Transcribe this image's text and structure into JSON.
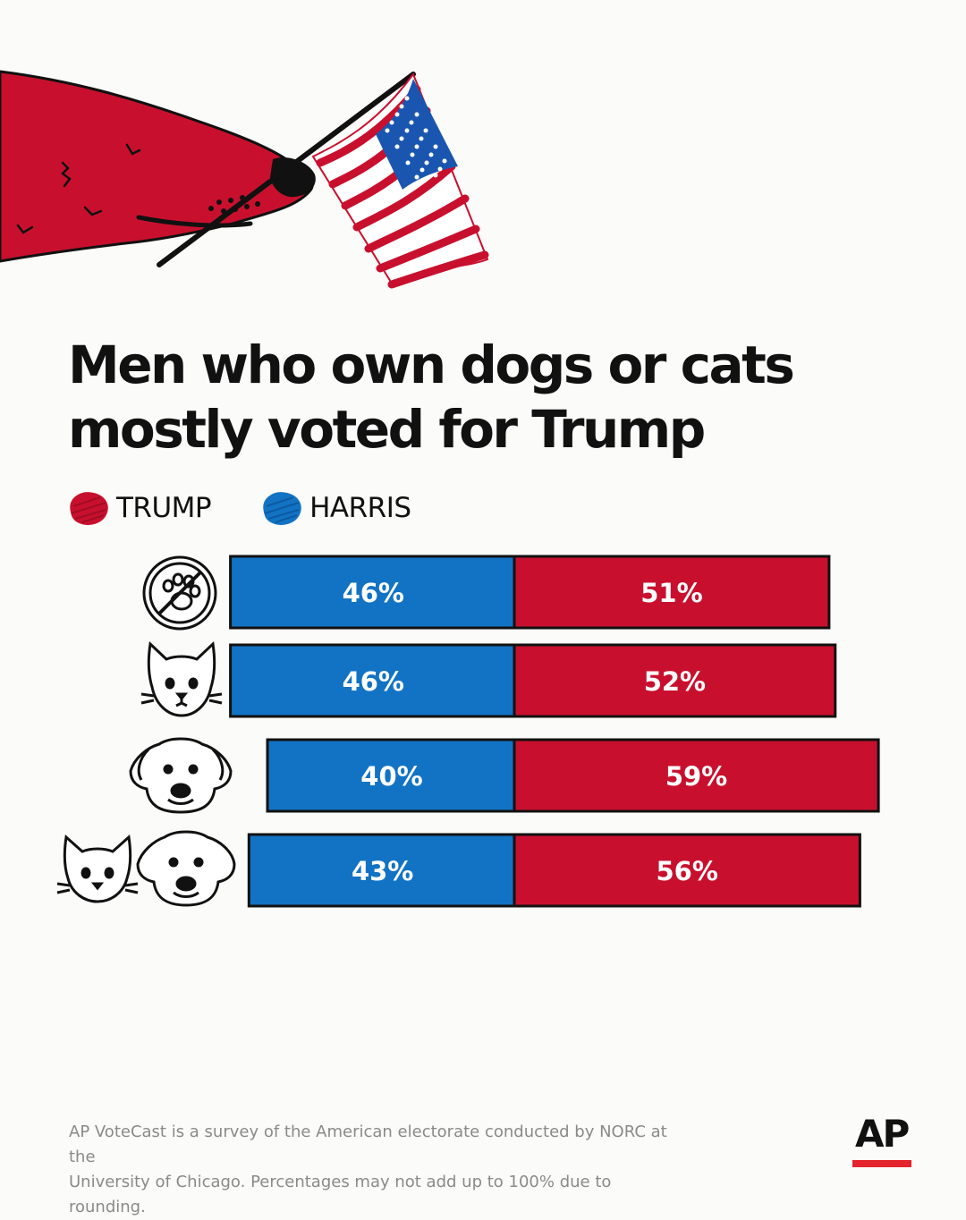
{
  "header": {
    "title_line1": "Men who own dogs or cats",
    "title_line2": "mostly voted for Trump"
  },
  "legend": {
    "items": [
      {
        "label": "TRUMP",
        "color": "#c8102e"
      },
      {
        "label": "HARRIS",
        "color": "#1273c4"
      }
    ]
  },
  "chart_data": {
    "type": "bar",
    "orientation": "horizontal-stacked",
    "title": "Men who own dogs or cats mostly voted for Trump",
    "categories": [
      "no-pet-icon",
      "cat-icon",
      "dog-icon",
      "cat-and-dog-icons"
    ],
    "series": [
      {
        "name": "HARRIS",
        "color": "#1273c4",
        "values": [
          46,
          46,
          40,
          43
        ],
        "labels": [
          "46%",
          "46%",
          "40%",
          "43%"
        ]
      },
      {
        "name": "TRUMP",
        "color": "#c8102e",
        "values": [
          51,
          52,
          59,
          56
        ],
        "labels": [
          "51%",
          "52%",
          "59%",
          "56%"
        ]
      }
    ],
    "legend_position": "top-left",
    "grid": false
  },
  "footer": {
    "note_line1": "AP VoteCast is a survey of the American electorate conducted by NORC at the",
    "note_line2": "University of Chicago. Percentages may not add up to 100% due to rounding.",
    "logo_text": "AP"
  },
  "colors": {
    "trump": "#c8102e",
    "harris": "#1273c4",
    "background": "#fbfbf9"
  }
}
